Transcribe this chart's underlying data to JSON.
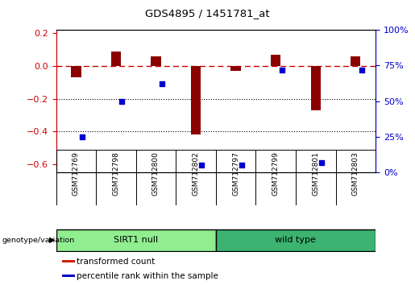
{
  "title": "GDS4895 / 1451781_at",
  "samples": [
    "GSM712769",
    "GSM712798",
    "GSM712800",
    "GSM712802",
    "GSM712797",
    "GSM712799",
    "GSM712801",
    "GSM712803"
  ],
  "red_values": [
    -0.07,
    0.09,
    0.06,
    -0.42,
    -0.03,
    0.07,
    -0.27,
    0.06
  ],
  "blue_percentiles": [
    25,
    50,
    62,
    5,
    5,
    72,
    7,
    72
  ],
  "groups": [
    {
      "label": "SIRT1 null",
      "start": 0,
      "end": 4,
      "color": "#90EE90"
    },
    {
      "label": "wild type",
      "start": 4,
      "end": 8,
      "color": "#3CB371"
    }
  ],
  "ylim_left": [
    -0.65,
    0.22
  ],
  "ylim_right": [
    0,
    100
  ],
  "yticks_left": [
    0.2,
    0.0,
    -0.2,
    -0.4,
    -0.6
  ],
  "yticks_right": [
    100,
    75,
    50,
    25,
    0
  ],
  "hline_y": 0.0,
  "dotted_lines": [
    -0.2,
    -0.4
  ],
  "left_axis_color": "#cc0000",
  "right_axis_color": "#0000cc",
  "bar_color": "#8B0000",
  "dot_color": "#0000cc",
  "legend_items": [
    {
      "color": "#cc2200",
      "label": "transformed count"
    },
    {
      "color": "#0000cc",
      "label": "percentile rank within the sample"
    }
  ],
  "genotype_label": "genotype/variation",
  "background_color": "#ffffff",
  "sample_bg_color": "#c8c8c8",
  "bar_width": 0.25
}
